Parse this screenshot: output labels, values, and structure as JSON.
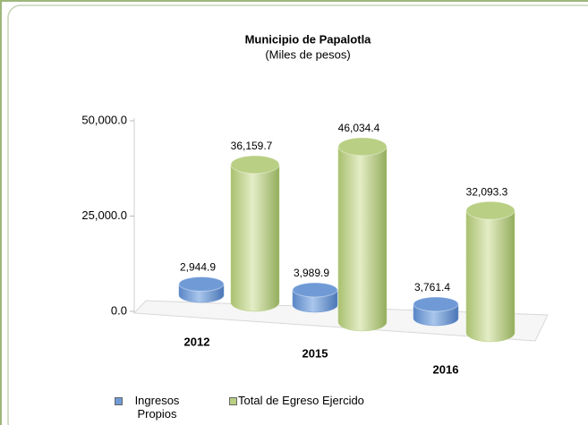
{
  "chart_data": {
    "type": "bar3d",
    "title": "Municipio de Papalotla",
    "subtitle": "(Miles de pesos)",
    "categories": [
      "2012",
      "2015",
      "2016"
    ],
    "series": [
      {
        "name": "Ingresos Propios",
        "color": "#6f9ad6",
        "values": [
          2944.9,
          3989.9,
          3761.4
        ],
        "value_labels": [
          "2,944.9",
          "3,989.9",
          "3,761.4"
        ]
      },
      {
        "name": "Total de Egreso Ejercido",
        "color": "#b9cf84",
        "values": [
          36159.7,
          46034.4,
          32093.3
        ],
        "value_labels": [
          "36,159.7",
          "46,034.4",
          "32,093.3"
        ]
      }
    ],
    "ylim": [
      0,
      50000
    ],
    "yticks": [
      {
        "value": 0,
        "label": "0.0"
      },
      {
        "value": 25000,
        "label": "25,000.0"
      },
      {
        "value": 50000,
        "label": "50,000.0"
      }
    ],
    "grid": false,
    "legend": "bottom"
  }
}
